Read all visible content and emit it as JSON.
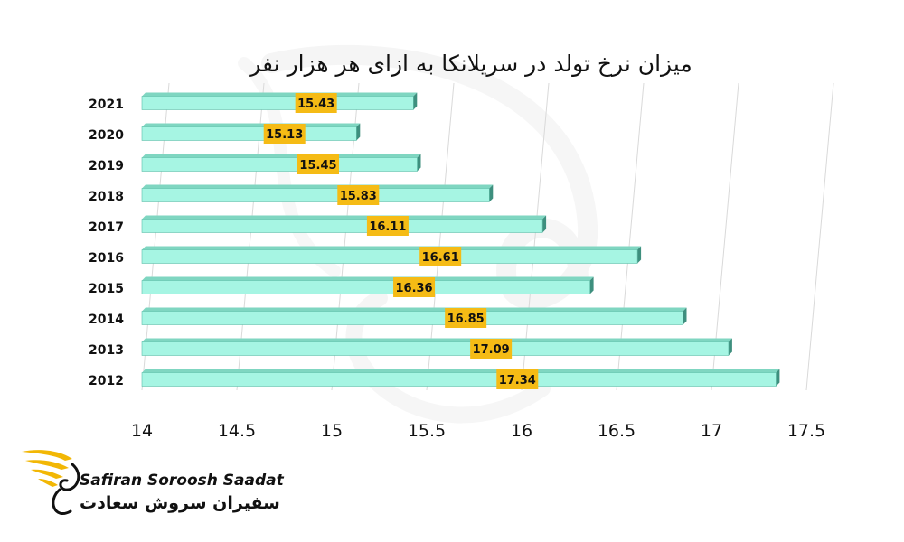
{
  "chart_data": {
    "type": "bar",
    "orientation": "horizontal",
    "title": "میزان نرخ تولد در سریلانکا به ازای هر هزار نفر",
    "categories": [
      "2021",
      "2020",
      "2019",
      "2018",
      "2017",
      "2016",
      "2015",
      "2014",
      "2013",
      "2012"
    ],
    "values": [
      15.43,
      15.13,
      15.45,
      15.83,
      16.11,
      16.61,
      16.36,
      16.85,
      17.09,
      17.34
    ],
    "data_labels": [
      "15.43",
      "15.13",
      "15.45",
      "15.83",
      "16.11",
      "16.61",
      "16.36",
      "16.85",
      "17.09",
      "17.34"
    ],
    "xlim": [
      14,
      17.5
    ],
    "x_ticks": [
      "14",
      "14.5",
      "15",
      "15.5",
      "16",
      "16.5",
      "17",
      "17.5"
    ],
    "xlabel": "",
    "ylabel": "",
    "grid": true,
    "legend": "none",
    "colors": {
      "bar_face": "#A6F5E3",
      "bar_edge": "#5FBFA9",
      "label_bg": "#F5BB15",
      "grid": "#D9D9D9"
    }
  },
  "brand": {
    "name_en": "Safiran Soroosh Saadat",
    "name_fa": "سفیران سروش سعادت",
    "logo_icon": "winged-swirl-logo",
    "accent": "#F2B705"
  }
}
